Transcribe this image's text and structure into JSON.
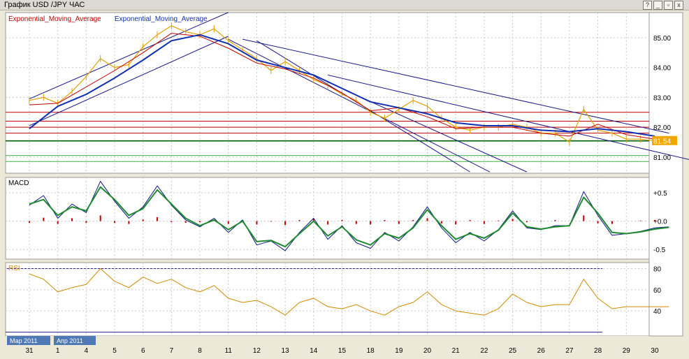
{
  "window": {
    "title": "График USD /JPY  ЧАС",
    "controls": {
      "help": "?",
      "minimize": "_",
      "restore": "▫",
      "close": "x"
    }
  },
  "chart_data": [
    {
      "panel": "price",
      "type": "line",
      "symbol": "USD/JPY",
      "timeframe": "ЧАС",
      "indicator_labels": [
        "Exponential_Moving_Average",
        "Exponential_Moving_Average"
      ],
      "y_ticks": [
        "85.00",
        "84.00",
        "83.00",
        "82.00",
        "81.00"
      ],
      "y_range": [
        80.55,
        85.75
      ],
      "last_price": "81.54",
      "x_ticks": [
        "31",
        "1",
        "4",
        "5",
        "6",
        "7",
        "8",
        "11",
        "12",
        "13",
        "14",
        "15",
        "18",
        "19",
        "20",
        "21",
        "22",
        "25",
        "26",
        "27",
        "28",
        "29",
        "30"
      ],
      "month_labels": [
        "Мар 2011",
        "Апр 2011"
      ],
      "series": [
        {
          "role": "price",
          "color": "#e0a100",
          "x": [
            0,
            0.5,
            1,
            1.5,
            2,
            2.5,
            3,
            3.5,
            4,
            4.5,
            5,
            5.5,
            6,
            6.5,
            7,
            7.5,
            8,
            8.5,
            9,
            9.5,
            10,
            10.5,
            11,
            11.5,
            12,
            12.5,
            13,
            13.5,
            14,
            14.5,
            15,
            15.5,
            16,
            16.5,
            17,
            17.5,
            18,
            18.5,
            19,
            19.5,
            20,
            20.5,
            21,
            21.5,
            22,
            22.5
          ],
          "y": [
            82.9,
            83.0,
            82.8,
            83.2,
            83.7,
            84.3,
            84.0,
            84.1,
            84.7,
            85.1,
            85.4,
            85.2,
            85.1,
            85.3,
            84.9,
            84.6,
            84.3,
            83.9,
            84.2,
            83.9,
            83.6,
            83.4,
            83.1,
            82.9,
            82.5,
            82.3,
            82.6,
            82.9,
            82.7,
            82.3,
            82.0,
            81.9,
            82.0,
            82.0,
            82.1,
            82.0,
            81.8,
            81.8,
            81.5,
            82.6,
            81.9,
            81.8,
            81.6,
            81.6,
            81.54,
            81.54
          ]
        },
        {
          "role": "ema_fast",
          "color": "#c00000",
          "x": [
            0,
            1,
            2,
            3,
            4,
            5,
            6,
            7,
            8,
            9,
            10,
            11,
            12,
            13,
            14,
            15,
            16,
            17,
            18,
            19,
            20,
            21,
            22
          ],
          "y": [
            82.75,
            82.8,
            83.35,
            83.9,
            84.5,
            85.15,
            85.05,
            84.65,
            84.15,
            83.95,
            83.65,
            83.15,
            82.55,
            82.65,
            82.35,
            81.95,
            82.0,
            82.0,
            81.8,
            81.7,
            82.1,
            81.75,
            81.6
          ]
        },
        {
          "role": "ema_slow",
          "color": "#1030b0",
          "x": [
            0,
            1,
            2,
            3,
            4,
            5,
            6,
            7,
            8,
            9,
            10,
            11,
            12,
            13,
            14,
            15,
            16,
            17,
            18,
            19,
            20,
            21,
            22
          ],
          "y": [
            81.95,
            82.7,
            83.1,
            83.65,
            84.25,
            84.9,
            85.1,
            84.8,
            84.25,
            84.0,
            83.75,
            83.3,
            82.85,
            82.65,
            82.45,
            82.15,
            82.05,
            82.05,
            81.9,
            81.85,
            81.95,
            81.85,
            81.7
          ]
        }
      ],
      "horizontal_levels": [
        {
          "y": 82.5,
          "color": "#c00000"
        },
        {
          "y": 82.2,
          "color": "#c00000"
        },
        {
          "y": 82.0,
          "color": "#c00000"
        },
        {
          "y": 81.8,
          "color": "#c00000"
        },
        {
          "y": 81.54,
          "color": "#006000"
        },
        {
          "y": 81.05,
          "color": "#40b040"
        },
        {
          "y": 80.85,
          "color": "#40b040"
        }
      ],
      "trendlines": [
        {
          "x": [
            0,
            7
          ],
          "y": [
            82.95,
            85.85
          ],
          "color": "#1a1a8a"
        },
        {
          "x": [
            0,
            7
          ],
          "y": [
            82.05,
            85.05
          ],
          "color": "#1a1a8a"
        },
        {
          "x": [
            7.5,
            22.5
          ],
          "y": [
            84.95,
            81.8
          ],
          "color": "#1a1a8a"
        },
        {
          "x": [
            10.5,
            23.5
          ],
          "y": [
            83.75,
            80.85
          ],
          "color": "#1a1a8a"
        },
        {
          "x": [
            7.0,
            16.2
          ],
          "y": [
            84.95,
            80.5
          ],
          "color": "#1a1a8a"
        },
        {
          "x": [
            11.2,
            17.5
          ],
          "y": [
            83.2,
            80.5
          ],
          "color": "#1a1a8a"
        },
        {
          "x": [
            8.0,
            15.5
          ],
          "y": [
            84.9,
            80.5
          ],
          "color": "#1a1a8a"
        }
      ]
    },
    {
      "panel": "macd",
      "type": "line",
      "label": "MACD",
      "y_ticks": [
        "+0.5",
        "+0.0",
        "-0.5"
      ],
      "y_range": [
        -0.62,
        0.72
      ],
      "series": [
        {
          "role": "macd",
          "color": "#0a1a80",
          "x": [
            0,
            0.5,
            1,
            1.5,
            2,
            2.5,
            3,
            3.5,
            4,
            4.5,
            5,
            5.5,
            6,
            6.5,
            7,
            7.5,
            8,
            8.5,
            9,
            9.5,
            10,
            10.5,
            11,
            11.5,
            12,
            12.5,
            13,
            13.5,
            14,
            14.5,
            15,
            15.5,
            16,
            16.5,
            17,
            17.5,
            18,
            18.5,
            19,
            19.5,
            20,
            20.5,
            21,
            21.5,
            22,
            22.5
          ],
          "y": [
            0.28,
            0.45,
            0.05,
            0.3,
            0.15,
            0.7,
            0.35,
            0.05,
            0.25,
            0.62,
            0.28,
            0.02,
            -0.1,
            0.05,
            -0.2,
            0.02,
            -0.42,
            -0.35,
            -0.52,
            -0.2,
            0.05,
            -0.32,
            -0.08,
            -0.38,
            -0.48,
            -0.2,
            -0.35,
            -0.1,
            0.25,
            -0.12,
            -0.38,
            -0.2,
            -0.35,
            -0.15,
            0.18,
            -0.12,
            -0.15,
            -0.08,
            -0.08,
            0.52,
            0.1,
            -0.25,
            -0.22,
            -0.18,
            -0.12,
            -0.1
          ]
        },
        {
          "role": "signal",
          "color": "#208a30",
          "x": [
            0,
            0.5,
            1,
            1.5,
            2,
            2.5,
            3,
            3.5,
            4,
            4.5,
            5,
            5.5,
            6,
            6.5,
            7,
            7.5,
            8,
            8.5,
            9,
            9.5,
            10,
            10.5,
            11,
            11.5,
            12,
            12.5,
            13,
            13.5,
            14,
            14.5,
            15,
            15.5,
            16,
            16.5,
            17,
            17.5,
            18,
            18.5,
            19,
            19.5,
            20,
            20.5,
            21,
            21.5,
            22,
            22.5
          ],
          "y": [
            0.3,
            0.38,
            0.1,
            0.25,
            0.18,
            0.6,
            0.38,
            0.1,
            0.22,
            0.55,
            0.3,
            0.05,
            -0.08,
            0.02,
            -0.15,
            0.0,
            -0.36,
            -0.34,
            -0.45,
            -0.22,
            0.0,
            -0.26,
            -0.1,
            -0.33,
            -0.42,
            -0.22,
            -0.3,
            -0.12,
            0.2,
            -0.08,
            -0.32,
            -0.22,
            -0.3,
            -0.16,
            0.14,
            -0.1,
            -0.14,
            -0.1,
            -0.08,
            0.42,
            0.14,
            -0.2,
            -0.22,
            -0.19,
            -0.14,
            -0.11
          ]
        },
        {
          "role": "histogram",
          "color": "#c00000",
          "x": [
            0,
            0.5,
            1,
            1.5,
            2,
            2.5,
            3,
            3.5,
            4,
            4.5,
            5,
            5.5,
            6,
            6.5,
            7,
            7.5,
            8,
            8.5,
            9,
            9.5,
            10,
            10.5,
            11,
            11.5,
            12,
            12.5,
            13,
            13.5,
            14,
            14.5,
            15,
            15.5,
            16,
            16.5,
            17,
            17.5,
            18,
            18.5,
            19,
            19.5,
            20,
            20.5,
            21,
            21.5,
            22
          ],
          "y": [
            -0.03,
            0.06,
            -0.05,
            0.05,
            -0.03,
            0.1,
            -0.03,
            -0.05,
            0.03,
            0.07,
            -0.02,
            -0.03,
            -0.02,
            0.03,
            -0.05,
            0.02,
            -0.06,
            -0.01,
            -0.07,
            0.02,
            0.05,
            -0.06,
            0.02,
            -0.05,
            -0.06,
            0.02,
            -0.05,
            0.02,
            0.05,
            -0.04,
            -0.06,
            0.02,
            -0.05,
            0.01,
            0.04,
            -0.02,
            -0.01,
            0.02,
            0.0,
            0.1,
            -0.04,
            -0.05,
            0.0,
            0.01,
            0.02
          ]
        }
      ]
    },
    {
      "panel": "rsi",
      "type": "line",
      "label": "RSI",
      "y_ticks": [
        "80",
        "60",
        "40"
      ],
      "y_range": [
        19,
        83
      ],
      "levels": [
        80,
        20
      ],
      "series": [
        {
          "role": "rsi",
          "color": "#d08a00",
          "x": [
            0,
            0.5,
            1,
            1.5,
            2,
            2.5,
            3,
            3.5,
            4,
            4.5,
            5,
            5.5,
            6,
            6.5,
            7,
            7.5,
            8,
            8.5,
            9,
            9.5,
            10,
            10.5,
            11,
            11.5,
            12,
            12.5,
            13,
            13.5,
            14,
            14.5,
            15,
            15.5,
            16,
            16.5,
            17,
            17.5,
            18,
            18.5,
            19,
            19.5,
            20,
            20.5,
            21,
            21.5,
            22,
            22.5
          ],
          "y": [
            75,
            70,
            58,
            62,
            65,
            80,
            68,
            62,
            72,
            66,
            70,
            62,
            58,
            64,
            52,
            48,
            50,
            44,
            36,
            48,
            52,
            44,
            42,
            46,
            40,
            36,
            44,
            48,
            58,
            46,
            40,
            38,
            36,
            42,
            56,
            48,
            44,
            46,
            46,
            70,
            52,
            42,
            44,
            44,
            44,
            44
          ]
        }
      ]
    }
  ]
}
